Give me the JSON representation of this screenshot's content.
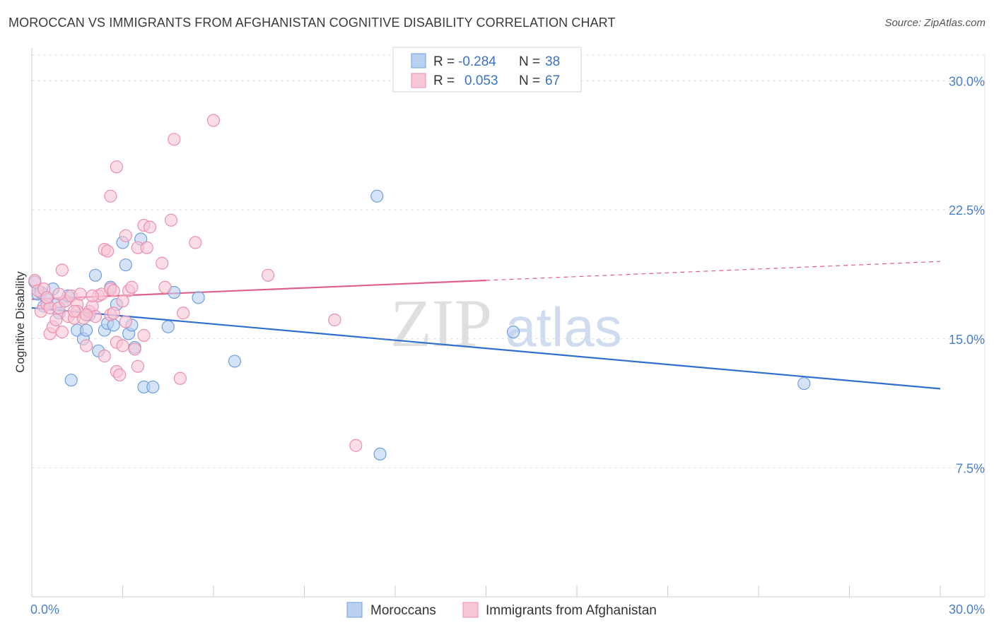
{
  "title": "MOROCCAN VS IMMIGRANTS FROM AFGHANISTAN COGNITIVE DISABILITY CORRELATION CHART",
  "source": "Source: ZipAtlas.com",
  "watermark": {
    "zip": "ZIP",
    "atlas": "atlas"
  },
  "colors": {
    "blue_fill": "#b9d0f0",
    "blue_stroke": "#6f9fe0",
    "blue_line": "#2f6fd0",
    "pink_fill": "#f8c7d6",
    "pink_stroke": "#eb8fae",
    "pink_line": "#e0608a",
    "axis_label": "#4a7fc8",
    "grid": "#dddddd"
  },
  "legend": {
    "r_label": "R =",
    "n_label": "N =",
    "rows": [
      {
        "series": "Moroccans",
        "r": "-0.284",
        "n": "38"
      },
      {
        "series": "Immigrants from Afghanistan",
        "r": "0.053",
        "n": "67"
      }
    ]
  },
  "chart_data": {
    "type": "scatter",
    "title": "MOROCCAN VS IMMIGRANTS FROM AFGHANISTAN COGNITIVE DISABILITY CORRELATION CHART",
    "xlabel": "",
    "ylabel": "Cognitive Disability",
    "xlim": [
      0,
      30
    ],
    "ylim": [
      0,
      31.5
    ],
    "x_tick_labels": {
      "left": "0.0%",
      "right": "30.0%"
    },
    "y_ticks": [
      7.5,
      15.0,
      22.5,
      30.0
    ],
    "y_tick_labels": [
      "7.5%",
      "15.0%",
      "22.5%",
      "30.0%"
    ],
    "grid": true,
    "legend_position": "top-center",
    "series": [
      {
        "name": "Moroccans",
        "r": -0.284,
        "n": 38,
        "trend": {
          "x": [
            0,
            30
          ],
          "y": [
            16.8,
            12.1
          ],
          "solid_until": 30
        },
        "points": [
          [
            0.1,
            18.3
          ],
          [
            0.2,
            17.6
          ],
          [
            0.3,
            17.7
          ],
          [
            0.5,
            17.3
          ],
          [
            0.7,
            17.9
          ],
          [
            0.8,
            17.0
          ],
          [
            0.9,
            16.5
          ],
          [
            1.1,
            17.2
          ],
          [
            1.2,
            17.5
          ],
          [
            1.3,
            12.6
          ],
          [
            1.5,
            15.5
          ],
          [
            1.7,
            15.0
          ],
          [
            1.8,
            15.5
          ],
          [
            1.9,
            16.4
          ],
          [
            2.1,
            18.7
          ],
          [
            2.2,
            14.3
          ],
          [
            2.4,
            15.5
          ],
          [
            2.5,
            15.9
          ],
          [
            2.6,
            18.0
          ],
          [
            2.7,
            15.8
          ],
          [
            2.8,
            17.0
          ],
          [
            3.0,
            20.6
          ],
          [
            3.1,
            19.3
          ],
          [
            3.2,
            15.3
          ],
          [
            3.3,
            15.8
          ],
          [
            3.4,
            14.5
          ],
          [
            3.6,
            20.8
          ],
          [
            3.7,
            12.2
          ],
          [
            4.0,
            12.2
          ],
          [
            4.5,
            15.7
          ],
          [
            4.7,
            17.7
          ],
          [
            5.5,
            17.4
          ],
          [
            6.7,
            13.7
          ],
          [
            11.5,
            8.3
          ],
          [
            11.4,
            23.3
          ],
          [
            15.9,
            15.4
          ],
          [
            25.5,
            12.4
          ],
          [
            0.4,
            16.9
          ]
        ]
      },
      {
        "name": "Immigrants from Afghanistan",
        "r": 0.053,
        "n": 67,
        "trend": {
          "x": [
            0,
            30
          ],
          "y": [
            17.3,
            19.5
          ],
          "solid_until": 15
        },
        "points": [
          [
            0.1,
            18.4
          ],
          [
            0.2,
            17.8
          ],
          [
            0.3,
            16.6
          ],
          [
            0.4,
            17.9
          ],
          [
            0.5,
            17.0
          ],
          [
            0.6,
            16.8
          ],
          [
            0.6,
            15.3
          ],
          [
            0.7,
            15.7
          ],
          [
            0.8,
            16.1
          ],
          [
            0.9,
            16.8
          ],
          [
            1.0,
            15.4
          ],
          [
            1.0,
            19.0
          ],
          [
            1.1,
            17.2
          ],
          [
            1.2,
            16.3
          ],
          [
            1.3,
            17.5
          ],
          [
            1.4,
            16.2
          ],
          [
            1.5,
            17.0
          ],
          [
            1.5,
            16.6
          ],
          [
            1.6,
            17.6
          ],
          [
            1.7,
            16.2
          ],
          [
            1.8,
            14.6
          ],
          [
            1.9,
            16.6
          ],
          [
            2.0,
            16.9
          ],
          [
            2.1,
            16.3
          ],
          [
            2.2,
            17.5
          ],
          [
            2.3,
            17.6
          ],
          [
            2.4,
            14.0
          ],
          [
            2.4,
            20.2
          ],
          [
            2.5,
            20.1
          ],
          [
            2.6,
            17.9
          ],
          [
            2.6,
            16.4
          ],
          [
            2.7,
            17.8
          ],
          [
            2.7,
            16.5
          ],
          [
            2.8,
            14.8
          ],
          [
            2.8,
            13.1
          ],
          [
            2.9,
            12.9
          ],
          [
            2.6,
            23.3
          ],
          [
            2.8,
            25.0
          ],
          [
            3.0,
            14.6
          ],
          [
            3.0,
            17.2
          ],
          [
            3.1,
            21.0
          ],
          [
            3.2,
            17.8
          ],
          [
            3.3,
            18.0
          ],
          [
            3.4,
            14.4
          ],
          [
            3.5,
            20.3
          ],
          [
            3.5,
            13.4
          ],
          [
            3.7,
            21.6
          ],
          [
            3.8,
            20.3
          ],
          [
            3.9,
            21.5
          ],
          [
            3.7,
            15.2
          ],
          [
            4.3,
            19.4
          ],
          [
            4.4,
            18.0
          ],
          [
            4.6,
            21.9
          ],
          [
            4.7,
            26.6
          ],
          [
            4.9,
            12.7
          ],
          [
            5.0,
            16.5
          ],
          [
            5.4,
            20.6
          ],
          [
            6.0,
            27.7
          ],
          [
            7.8,
            18.7
          ],
          [
            10.0,
            16.1
          ],
          [
            10.7,
            8.8
          ],
          [
            1.8,
            16.4
          ],
          [
            0.9,
            17.6
          ],
          [
            2.0,
            17.5
          ],
          [
            3.1,
            16.0
          ],
          [
            1.4,
            16.6
          ],
          [
            0.5,
            17.4
          ]
        ]
      }
    ]
  }
}
